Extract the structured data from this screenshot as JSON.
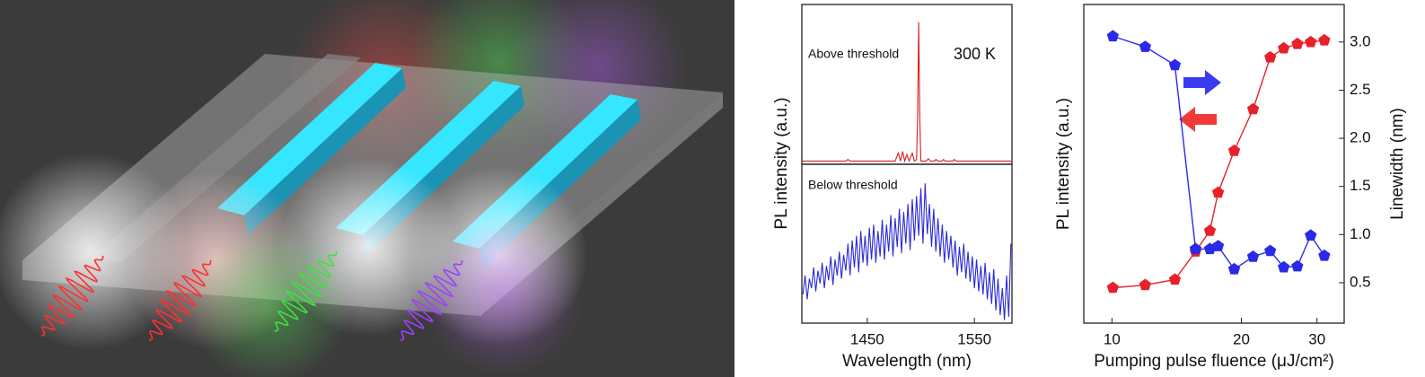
{
  "chart_data": [
    {
      "type": "line",
      "ylabel": "PL intensity (a.u.)",
      "annotations": [
        "Above threshold",
        "300 K"
      ],
      "color": "#d42020",
      "xlim": [
        1389,
        1585
      ],
      "ylim": [
        0,
        1
      ],
      "x": [
        1389,
        1430,
        1432,
        1434,
        1476,
        1479,
        1481,
        1483,
        1485,
        1487,
        1489,
        1492,
        1494,
        1496,
        1497,
        1498,
        1499,
        1500,
        1505,
        1507,
        1509,
        1513,
        1514,
        1516,
        1520,
        1521,
        1523,
        1530,
        1531,
        1533,
        1585
      ],
      "values": [
        0.02,
        0.02,
        0.03,
        0.02,
        0.02,
        0.07,
        0.02,
        0.08,
        0.02,
        0.06,
        0.02,
        0.07,
        0.02,
        0.03,
        0.3,
        0.89,
        0.3,
        0.02,
        0.02,
        0.035,
        0.02,
        0.02,
        0.03,
        0.02,
        0.02,
        0.03,
        0.02,
        0.02,
        0.03,
        0.02,
        0.02
      ]
    },
    {
      "type": "line",
      "annotations": [
        "Below threshold"
      ],
      "xlabel": "Wavelength (nm)",
      "color": "#2a2ad8",
      "xlim": [
        1389,
        1585
      ],
      "ylim": [
        0,
        1
      ],
      "xticks": [
        1450,
        1550
      ],
      "x": [
        1390,
        1392,
        1394,
        1396,
        1398,
        1400,
        1402,
        1404,
        1406,
        1408,
        1410,
        1412,
        1414,
        1416,
        1418,
        1420,
        1422,
        1424,
        1426,
        1428,
        1430,
        1432,
        1434,
        1436,
        1438,
        1440,
        1442,
        1444,
        1446,
        1448,
        1450,
        1452,
        1454,
        1456,
        1458,
        1460,
        1462,
        1464,
        1466,
        1468,
        1470,
        1472,
        1474,
        1476,
        1478,
        1480,
        1482,
        1484,
        1486,
        1488,
        1490,
        1492,
        1494,
        1496,
        1498,
        1500,
        1502,
        1504,
        1506,
        1508,
        1510,
        1512,
        1514,
        1516,
        1518,
        1520,
        1522,
        1524,
        1526,
        1528,
        1530,
        1532,
        1534,
        1536,
        1538,
        1540,
        1542,
        1544,
        1546,
        1548,
        1550,
        1552,
        1554,
        1556,
        1558,
        1560,
        1562,
        1564,
        1566,
        1568,
        1570,
        1572,
        1574,
        1576,
        1578,
        1580,
        1582,
        1584
      ],
      "values": [
        0.18,
        0.3,
        0.15,
        0.28,
        0.22,
        0.35,
        0.2,
        0.33,
        0.25,
        0.38,
        0.22,
        0.36,
        0.27,
        0.42,
        0.24,
        0.4,
        0.3,
        0.45,
        0.28,
        0.43,
        0.33,
        0.5,
        0.3,
        0.52,
        0.35,
        0.55,
        0.32,
        0.58,
        0.38,
        0.55,
        0.36,
        0.6,
        0.4,
        0.62,
        0.38,
        0.58,
        0.42,
        0.65,
        0.4,
        0.62,
        0.45,
        0.68,
        0.42,
        0.66,
        0.48,
        0.72,
        0.44,
        0.7,
        0.5,
        0.75,
        0.46,
        0.78,
        0.52,
        0.8,
        0.55,
        0.85,
        0.5,
        0.88,
        0.56,
        0.75,
        0.48,
        0.72,
        0.45,
        0.66,
        0.42,
        0.62,
        0.38,
        0.58,
        0.4,
        0.55,
        0.35,
        0.52,
        0.3,
        0.48,
        0.32,
        0.5,
        0.28,
        0.45,
        0.26,
        0.42,
        0.22,
        0.4,
        0.2,
        0.36,
        0.18,
        0.38,
        0.15,
        0.32,
        0.12,
        0.34,
        0.08,
        0.28,
        0.05,
        0.22,
        0.02,
        0.3,
        0.04,
        0.5
      ]
    },
    {
      "type": "line",
      "xlabel": "Pumping pulse fluence (μJ/cm²)",
      "ylabel": "PL intensity (a.u.)",
      "y2label": "Linewidth (nm)",
      "xlog": true,
      "ylog": true,
      "marker": "pentagon",
      "xlim": [
        8.6,
        34.7
      ],
      "ylim": [
        0.19,
        3250
      ],
      "y2lim": [
        0.08,
        3.39
      ],
      "xticks": [
        10,
        20,
        30
      ],
      "y2ticks": [
        {
          "value": 0.5,
          "label": "0.5"
        },
        {
          "value": 1,
          "label": "1.0"
        },
        {
          "value": 1.5,
          "label": "1.5"
        },
        {
          "value": 2,
          "label": "2.0"
        },
        {
          "value": 2.5,
          "label": "2.5"
        },
        {
          "value": 3,
          "label": "3.0"
        }
      ],
      "x": [
        10.05,
        11.95,
        14.01,
        15.65,
        16.9,
        17.66,
        19.25,
        21.3,
        23.35,
        25.1,
        27.0,
        29.0,
        31.2
      ],
      "series": [
        {
          "color": "#e8202a",
          "axis": "y",
          "values": [
            0.56,
            0.61,
            0.72,
            1.7,
            3.2,
            10.3,
            37,
            132,
            645,
            850,
            973,
            1030,
            1086
          ]
        },
        {
          "color": "#2a2ae8",
          "axis": "y2",
          "values": [
            3.06,
            2.95,
            2.76,
            0.85,
            0.85,
            0.88,
            0.64,
            0.77,
            0.83,
            0.66,
            0.67,
            0.99,
            0.78
          ]
        }
      ]
    }
  ]
}
